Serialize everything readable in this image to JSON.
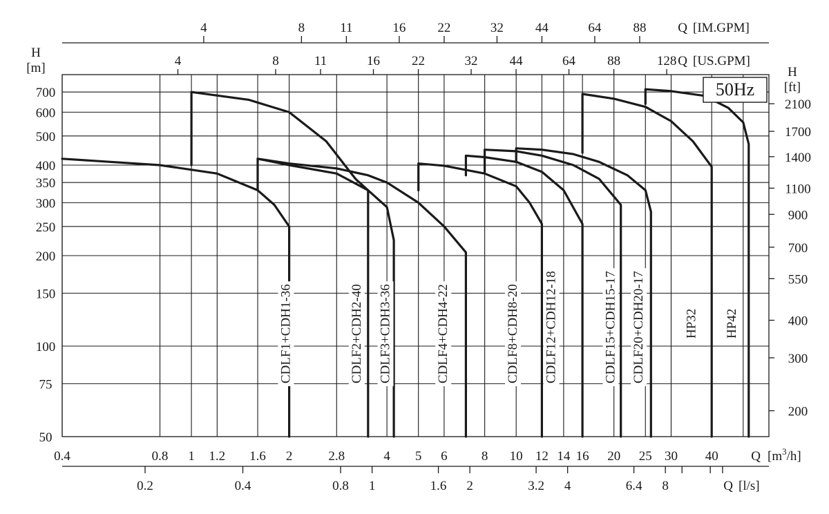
{
  "chart_data": {
    "type": "line",
    "badge": "50Hz",
    "x_scale": "log",
    "y_scale": "log",
    "xlim": [
      0.4,
      60
    ],
    "ylim": [
      50,
      800
    ],
    "axes": {
      "bottom": {
        "label": "Q",
        "unit_open": "[m",
        "unit_sup": "3",
        "unit_close": "/h]",
        "ticks": [
          0.4,
          0.8,
          1,
          1.2,
          1.6,
          2,
          2.8,
          4,
          5,
          6,
          8,
          10,
          12,
          14,
          16,
          20,
          25,
          30,
          40
        ],
        "tick_labels": [
          "0.4",
          "0.8",
          "1",
          "1.2",
          "1.6",
          "2",
          "2.8",
          "4",
          "5",
          "6",
          "8",
          "10",
          "12",
          "14",
          "16",
          "20",
          "25",
          "30",
          "40"
        ]
      },
      "bottom_secondary": {
        "label": "Q",
        "unit": "[l/s]",
        "ticks": [
          0.2,
          0.4,
          0.8,
          1,
          1.6,
          2,
          3.2,
          4,
          6.4,
          8
        ],
        "tick_labels": [
          "0.2",
          "0.4",
          "0.8",
          "1",
          "1.6",
          "2",
          "3.2",
          "4",
          "6.4",
          "8"
        ]
      },
      "top_us": {
        "label": "Q",
        "unit": "[US.GPM]",
        "ticks": [
          4,
          8,
          11,
          16,
          22,
          32,
          44,
          64,
          88,
          128
        ],
        "tick_labels": [
          "4",
          "8",
          "11",
          "16",
          "22",
          "32",
          "44",
          "64",
          "88",
          "128"
        ]
      },
      "top_im": {
        "label": "Q",
        "unit": "[IM.GPM]",
        "ticks": [
          4,
          8,
          11,
          16,
          22,
          32,
          44,
          64,
          88
        ],
        "tick_labels": [
          "4",
          "8",
          "11",
          "16",
          "22",
          "32",
          "44",
          "64",
          "88"
        ]
      },
      "left": {
        "label": "H",
        "unit": "[m]",
        "ticks": [
          50,
          75,
          100,
          150,
          200,
          250,
          300,
          350,
          400,
          500,
          600,
          700
        ],
        "tick_labels": [
          "50",
          "75",
          "100",
          "150",
          "200",
          "250",
          "300",
          "350",
          "400",
          "500",
          "600",
          "700"
        ]
      },
      "right": {
        "label": "H",
        "unit": "[ft]",
        "ticks": [
          200,
          300,
          400,
          550,
          700,
          900,
          1100,
          1400,
          1700,
          2100
        ],
        "tick_labels": [
          "200",
          "300",
          "400",
          "550",
          "700",
          "900",
          "1100",
          "1400",
          "1700",
          "2100"
        ]
      }
    },
    "series": [
      {
        "name": "CDLF1+CDH1-36",
        "label_q": 1.95,
        "points": [
          [
            0.4,
            420
          ],
          [
            0.8,
            400
          ],
          [
            1.2,
            375
          ],
          [
            1.6,
            330
          ],
          [
            1.8,
            295
          ],
          [
            2,
            250
          ],
          [
            2,
            50
          ]
        ]
      },
      {
        "name": "CDLF1+CDH1-36 (upper)",
        "points": [
          [
            1,
            400
          ],
          [
            1,
            700
          ],
          [
            1.5,
            660
          ],
          [
            2,
            600
          ],
          [
            2.6,
            480
          ],
          [
            3.2,
            360
          ],
          [
            3.5,
            330
          ],
          [
            3.5,
            50
          ]
        ]
      },
      {
        "name": "CDLF2+CDH2-40",
        "label_q": 3.22,
        "points": [
          [
            1.6,
            330
          ],
          [
            1.6,
            420
          ],
          [
            2,
            400
          ],
          [
            2.8,
            375
          ],
          [
            3.5,
            330
          ],
          [
            4,
            290
          ],
          [
            4.2,
            225
          ],
          [
            4.2,
            50
          ]
        ]
      },
      {
        "name": "CDLF3+CDH3-36",
        "label_q": 3.95,
        "points": [
          [
            1.6,
            420
          ],
          [
            2,
            405
          ],
          [
            2.8,
            390
          ],
          [
            3.5,
            370
          ],
          [
            4,
            350
          ],
          [
            5,
            300
          ],
          [
            6,
            250
          ],
          [
            7,
            205
          ],
          [
            7,
            50
          ]
        ]
      },
      {
        "name": "CDLF4+CDH4-22",
        "label_q": 5.95,
        "points": [
          [
            5,
            330
          ],
          [
            5,
            405
          ],
          [
            6,
            398
          ],
          [
            8,
            375
          ],
          [
            10,
            340
          ],
          [
            11,
            300
          ],
          [
            12,
            255
          ],
          [
            12,
            50
          ]
        ]
      },
      {
        "name": "CDLF8+CDH8-20",
        "label_q": 9.75,
        "points": [
          [
            7,
            370
          ],
          [
            7,
            430
          ],
          [
            8,
            425
          ],
          [
            10,
            410
          ],
          [
            12,
            380
          ],
          [
            14,
            330
          ],
          [
            16,
            255
          ],
          [
            16,
            50
          ]
        ]
      },
      {
        "name": "CDLF12+CDH12-18",
        "label_q": 12.8,
        "points": [
          [
            8,
            380
          ],
          [
            8,
            450
          ],
          [
            10,
            445
          ],
          [
            12,
            430
          ],
          [
            15,
            400
          ],
          [
            18,
            360
          ],
          [
            21,
            295
          ],
          [
            21,
            50
          ]
        ]
      },
      {
        "name": "CDLF15+CDH15-17",
        "label_q": 19.5,
        "points": [
          [
            10,
            410
          ],
          [
            10,
            455
          ],
          [
            12,
            450
          ],
          [
            15,
            435
          ],
          [
            18,
            410
          ],
          [
            22,
            370
          ],
          [
            25,
            330
          ],
          [
            26,
            280
          ],
          [
            26,
            50
          ]
        ]
      },
      {
        "name": "CDLF20+CDH20-17",
        "label_q": 23.8,
        "points": [
          [
            16,
            440
          ],
          [
            16,
            690
          ],
          [
            20,
            665
          ],
          [
            25,
            625
          ],
          [
            30,
            560
          ],
          [
            35,
            480
          ],
          [
            40,
            395
          ],
          [
            40,
            50
          ]
        ]
      },
      {
        "name": "HP32",
        "label_q": 34.6,
        "points": [
          [
            25,
            640
          ],
          [
            25,
            715
          ],
          [
            30,
            705
          ],
          [
            38,
            680
          ],
          [
            45,
            620
          ],
          [
            50,
            555
          ],
          [
            52,
            470
          ],
          [
            52,
            50
          ]
        ]
      },
      {
        "name": "HP42",
        "label_q": 46,
        "points": []
      }
    ]
  }
}
